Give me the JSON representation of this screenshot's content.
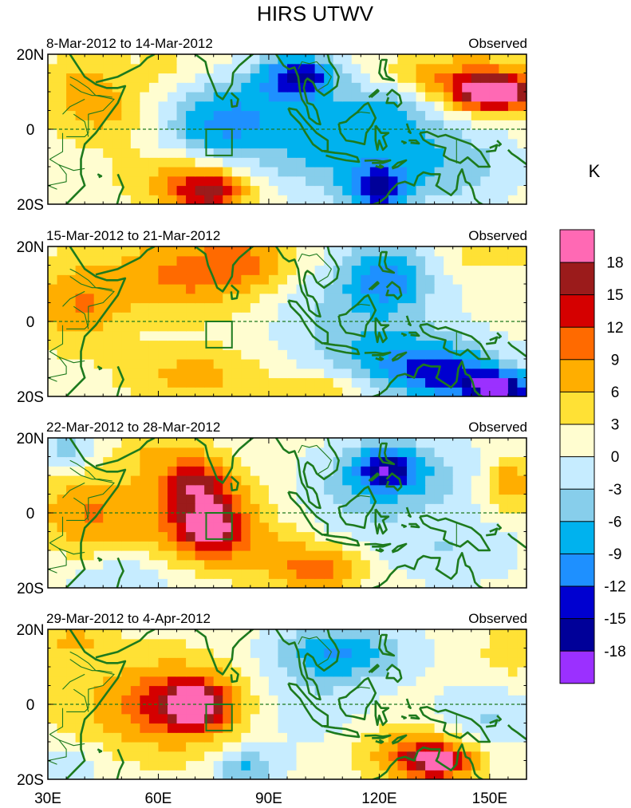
{
  "chart_data": {
    "type": "heatmap",
    "title": "HIRS UTWV",
    "units": "K",
    "colorbar": {
      "colors": [
        "#9b30ff",
        "#000099",
        "#0000d0",
        "#1e90ff",
        "#00b2ee",
        "#87ceeb",
        "#c6ecff",
        "#fffdd0",
        "#ffe135",
        "#ffae00",
        "#ff6a00",
        "#d50000",
        "#9b1b1b",
        "#ff69b4"
      ],
      "tick_labels": [
        "-18",
        "-15",
        "-12",
        "-9",
        "-6",
        "-3",
        "0",
        "3",
        "6",
        "9",
        "12",
        "15",
        "18"
      ],
      "ticks": [
        -18,
        -15,
        -12,
        -9,
        -6,
        -3,
        0,
        3,
        6,
        9,
        12,
        15,
        18
      ]
    },
    "lon_range": [
      30,
      160
    ],
    "lat_range": [
      -20,
      20
    ],
    "x_ticks": [
      {
        "lon": 30,
        "label": "30E"
      },
      {
        "lon": 60,
        "label": "60E"
      },
      {
        "lon": 90,
        "label": "90E"
      },
      {
        "lon": 120,
        "label": "120E"
      },
      {
        "lon": 150,
        "label": "150E"
      }
    ],
    "y_ticks": [
      {
        "lat": 20,
        "label": "20N"
      },
      {
        "lat": 0,
        "label": "0"
      },
      {
        "lat": -20,
        "label": "20S"
      }
    ],
    "box_region": {
      "lon": [
        73,
        80
      ],
      "lat": [
        -7,
        0
      ]
    },
    "panels": [
      {
        "period": "8-Mar-2012 to 14-Mar-2012",
        "label": "Observed",
        "anomaly_centers": [
          {
            "lon": 40,
            "lat": 12,
            "value": 5,
            "sx": 8,
            "sy": 7
          },
          {
            "lon": 46,
            "lat": 4,
            "value": 4,
            "sx": 10,
            "sy": 6
          },
          {
            "lon": 74,
            "lat": -17,
            "value": 13,
            "sx": 7,
            "sy": 4
          },
          {
            "lon": 66,
            "lat": -12,
            "value": 6,
            "sx": 12,
            "sy": 6
          },
          {
            "lon": 64,
            "lat": 16,
            "value": 3,
            "sx": 8,
            "sy": 4
          },
          {
            "lon": 98,
            "lat": 14,
            "value": -16,
            "sx": 7,
            "sy": 4
          },
          {
            "lon": 80,
            "lat": 5,
            "value": -8,
            "sx": 12,
            "sy": 7
          },
          {
            "lon": 72,
            "lat": -3,
            "value": -5,
            "sx": 10,
            "sy": 6
          },
          {
            "lon": 120,
            "lat": -16,
            "value": -14,
            "sx": 6,
            "sy": 4
          },
          {
            "lon": 110,
            "lat": -4,
            "value": -9,
            "sx": 18,
            "sy": 9
          },
          {
            "lon": 124,
            "lat": 6,
            "value": -5,
            "sx": 10,
            "sy": 5
          },
          {
            "lon": 140,
            "lat": -10,
            "value": -5,
            "sx": 12,
            "sy": 8
          },
          {
            "lon": 152,
            "lat": 10,
            "value": 19,
            "sx": 7,
            "sy": 3
          },
          {
            "lon": 146,
            "lat": 12,
            "value": 9,
            "sx": 12,
            "sy": 6
          },
          {
            "lon": 130,
            "lat": 14,
            "value": 3,
            "sx": 8,
            "sy": 4
          }
        ]
      },
      {
        "period": "15-Mar-2012 to 21-Mar-2012",
        "label": "Observed",
        "anomaly_centers": [
          {
            "lon": 66,
            "lat": 12,
            "value": 8,
            "sx": 16,
            "sy": 8
          },
          {
            "lon": 38,
            "lat": 4,
            "value": 7,
            "sx": 8,
            "sy": 8
          },
          {
            "lon": 84,
            "lat": 16,
            "value": 6,
            "sx": 10,
            "sy": 5
          },
          {
            "lon": 70,
            "lat": -14,
            "value": 6,
            "sx": 14,
            "sy": 5
          },
          {
            "lon": 104,
            "lat": -18,
            "value": 5,
            "sx": 8,
            "sy": 3
          },
          {
            "lon": 150,
            "lat": 18,
            "value": 4,
            "sx": 8,
            "sy": 3
          },
          {
            "lon": 122,
            "lat": 12,
            "value": -10,
            "sx": 8,
            "sy": 6
          },
          {
            "lon": 112,
            "lat": 2,
            "value": -5,
            "sx": 16,
            "sy": 10
          },
          {
            "lon": 140,
            "lat": -15,
            "value": -11,
            "sx": 12,
            "sy": 5
          },
          {
            "lon": 153,
            "lat": -18,
            "value": -18,
            "sx": 6,
            "sy": 3
          },
          {
            "lon": 128,
            "lat": -10,
            "value": -7,
            "sx": 14,
            "sy": 6
          }
        ]
      },
      {
        "period": "22-Mar-2012 to 28-Mar-2012",
        "label": "Observed",
        "anomaly_centers": [
          {
            "lon": 74,
            "lat": -3,
            "value": 13,
            "sx": 6,
            "sy": 5
          },
          {
            "lon": 70,
            "lat": 0,
            "value": 8,
            "sx": 14,
            "sy": 9
          },
          {
            "lon": 70,
            "lat": 8,
            "value": 10,
            "sx": 6,
            "sy": 4
          },
          {
            "lon": 40,
            "lat": 0,
            "value": 7,
            "sx": 10,
            "sy": 8
          },
          {
            "lon": 104,
            "lat": -15,
            "value": 9,
            "sx": 8,
            "sy": 4
          },
          {
            "lon": 90,
            "lat": -10,
            "value": 4,
            "sx": 14,
            "sy": 6
          },
          {
            "lon": 60,
            "lat": 16,
            "value": 4,
            "sx": 10,
            "sy": 4
          },
          {
            "lon": 155,
            "lat": 8,
            "value": 8,
            "sx": 5,
            "sy": 5
          },
          {
            "lon": 122,
            "lat": 12,
            "value": -13,
            "sx": 6,
            "sy": 4
          },
          {
            "lon": 126,
            "lat": 10,
            "value": -6,
            "sx": 16,
            "sy": 7
          },
          {
            "lon": 112,
            "lat": 0,
            "value": -3,
            "sx": 14,
            "sy": 8
          },
          {
            "lon": 140,
            "lat": -10,
            "value": -4,
            "sx": 12,
            "sy": 6
          },
          {
            "lon": 36,
            "lat": 17,
            "value": -6,
            "sx": 6,
            "sy": 4
          },
          {
            "lon": 50,
            "lat": -17,
            "value": -5,
            "sx": 10,
            "sy": 4
          }
        ]
      },
      {
        "period": "29-Mar-2012 to 4-Apr-2012",
        "label": "Observed",
        "anomaly_centers": [
          {
            "lon": 70,
            "lat": 0,
            "value": 13,
            "sx": 6,
            "sy": 4
          },
          {
            "lon": 66,
            "lat": 0,
            "value": 8,
            "sx": 14,
            "sy": 8
          },
          {
            "lon": 56,
            "lat": 0,
            "value": 4,
            "sx": 20,
            "sy": 10
          },
          {
            "lon": 136,
            "lat": -15,
            "value": 15,
            "sx": 6,
            "sy": 3
          },
          {
            "lon": 130,
            "lat": -13,
            "value": 8,
            "sx": 12,
            "sy": 6
          },
          {
            "lon": 36,
            "lat": 17,
            "value": 5,
            "sx": 8,
            "sy": 4
          },
          {
            "lon": 156,
            "lat": 14,
            "value": 4,
            "sx": 6,
            "sy": 5
          },
          {
            "lon": 110,
            "lat": 14,
            "value": -9,
            "sx": 12,
            "sy": 5
          },
          {
            "lon": 100,
            "lat": 2,
            "value": -4,
            "sx": 14,
            "sy": 10
          },
          {
            "lon": 84,
            "lat": -17,
            "value": -8,
            "sx": 6,
            "sy": 4
          },
          {
            "lon": 148,
            "lat": -4,
            "value": -5,
            "sx": 10,
            "sy": 6
          },
          {
            "lon": 36,
            "lat": -16,
            "value": -4,
            "sx": 6,
            "sy": 4
          }
        ]
      }
    ]
  }
}
